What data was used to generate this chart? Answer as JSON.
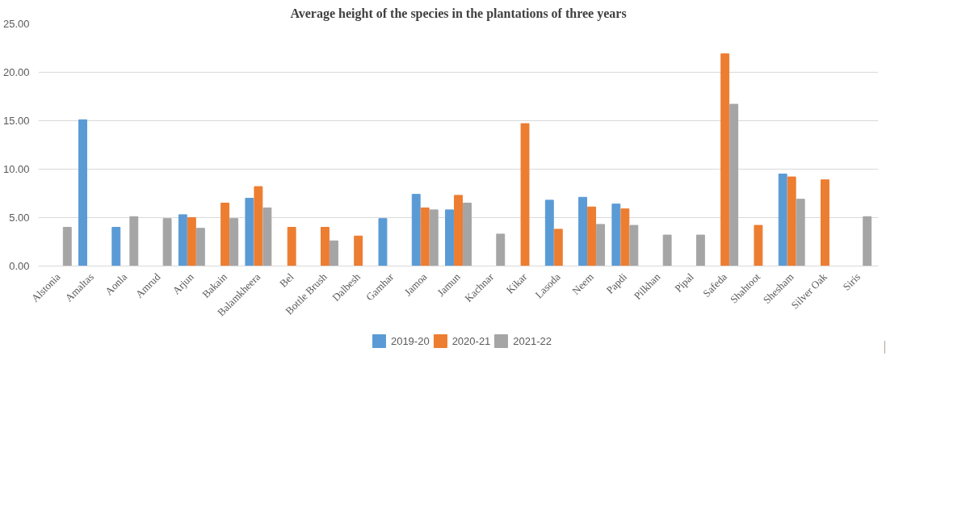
{
  "chart_data": {
    "type": "bar",
    "title": "Average height of the species in the plantations of three years",
    "categories": [
      "Alstonia",
      "Amaltas",
      "Aonla",
      "Amrud",
      "Arjun",
      "Bakain",
      "Balamkheera",
      "Bel",
      "Bottle Brush",
      "Dalbesh",
      "Gamhar",
      "Jamoa",
      "Jamun",
      "Kachnar",
      "Kikar",
      "Lasoda",
      "Neem",
      "Papdi",
      "Pilkhan",
      "Pipal",
      "Safeda",
      "Shahtoot",
      "Shesham",
      "Silver Oak",
      "Siris"
    ],
    "series": [
      {
        "name": "2019-20",
        "color": "#5b9bd5",
        "values": [
          null,
          15.1,
          4.0,
          null,
          5.3,
          null,
          7.0,
          null,
          null,
          null,
          4.9,
          7.4,
          5.8,
          null,
          null,
          6.8,
          7.1,
          6.4,
          null,
          null,
          null,
          null,
          9.5,
          null,
          null
        ]
      },
      {
        "name": "2020-21",
        "color": "#ed7d31",
        "values": [
          null,
          null,
          null,
          null,
          5.0,
          6.5,
          8.2,
          4.0,
          4.0,
          3.1,
          null,
          6.0,
          7.3,
          null,
          14.7,
          3.8,
          6.1,
          5.9,
          null,
          null,
          21.9,
          4.2,
          9.2,
          8.9,
          null
        ]
      },
      {
        "name": "2021-22",
        "color": "#a5a5a5",
        "values": [
          4.0,
          null,
          5.1,
          4.9,
          3.9,
          4.9,
          6.0,
          null,
          2.6,
          null,
          null,
          5.8,
          6.5,
          3.3,
          null,
          null,
          4.3,
          4.2,
          3.2,
          3.2,
          16.7,
          null,
          6.9,
          null,
          5.1
        ]
      }
    ],
    "ylim": [
      0,
      25
    ],
    "yticks": [
      {
        "value": 0,
        "label": "0.00"
      },
      {
        "value": 5,
        "label": "5.00"
      },
      {
        "value": 10,
        "label": "10.00"
      },
      {
        "value": 15,
        "label": "15.00"
      },
      {
        "value": 20,
        "label": "20.00"
      },
      {
        "value": 25,
        "label": "25.00"
      }
    ],
    "grid": "y",
    "legend": "bottom"
  }
}
